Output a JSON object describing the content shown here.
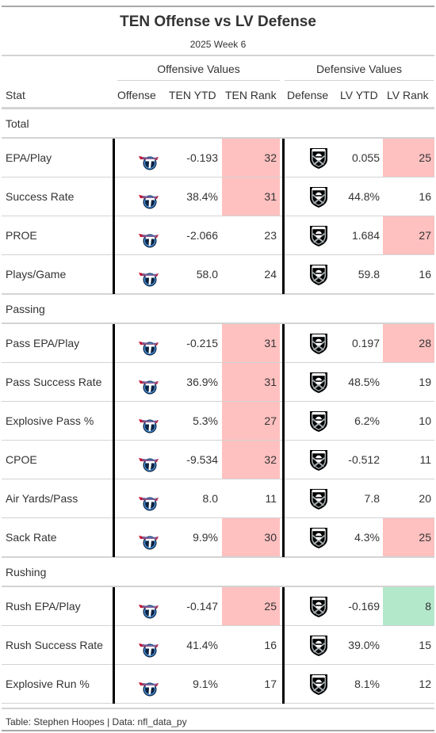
{
  "title": "TEN Offense vs LV Defense",
  "subtitle": "2025 Week 6",
  "spanners": {
    "offense": "Offensive Values",
    "defense": "Defensive Values"
  },
  "columns": {
    "stat": "Stat",
    "offense": "Offense",
    "ten_ytd": "TEN YTD",
    "ten_rank": "TEN Rank",
    "defense": "Defense",
    "lv_ytd": "LV YTD",
    "lv_rank": "LV Rank"
  },
  "logos": {
    "offense_icon": "tennessee-titans-logo-icon",
    "defense_icon": "las-vegas-raiders-logo-icon",
    "ten_colors": [
      "#0c2340",
      "#4b92db",
      "#c8102e"
    ],
    "lv_colors": [
      "#000000",
      "#a5acaf",
      "#ffffff"
    ]
  },
  "shading": {
    "bad_rank": "#ffc0c0",
    "good_rank": "#b3e8cb"
  },
  "groups": [
    {
      "label": "Total",
      "rows": [
        {
          "stat": "EPA/Play",
          "ten_ytd": "-0.193",
          "ten_rank": "32",
          "ten_shade": "red",
          "lv_ytd": "0.055",
          "lv_rank": "25",
          "lv_shade": "red"
        },
        {
          "stat": "Success Rate",
          "ten_ytd": "38.4%",
          "ten_rank": "31",
          "ten_shade": "red",
          "lv_ytd": "44.8%",
          "lv_rank": "16",
          "lv_shade": ""
        },
        {
          "stat": "PROE",
          "ten_ytd": "-2.066",
          "ten_rank": "23",
          "ten_shade": "",
          "lv_ytd": "1.684",
          "lv_rank": "27",
          "lv_shade": "red"
        },
        {
          "stat": "Plays/Game",
          "ten_ytd": "58.0",
          "ten_rank": "24",
          "ten_shade": "",
          "lv_ytd": "59.8",
          "lv_rank": "16",
          "lv_shade": ""
        }
      ]
    },
    {
      "label": "Passing",
      "rows": [
        {
          "stat": "Pass EPA/Play",
          "ten_ytd": "-0.215",
          "ten_rank": "31",
          "ten_shade": "red",
          "lv_ytd": "0.197",
          "lv_rank": "28",
          "lv_shade": "red"
        },
        {
          "stat": "Pass Success Rate",
          "ten_ytd": "36.9%",
          "ten_rank": "31",
          "ten_shade": "red",
          "lv_ytd": "48.5%",
          "lv_rank": "19",
          "lv_shade": ""
        },
        {
          "stat": "Explosive Pass %",
          "ten_ytd": "5.3%",
          "ten_rank": "27",
          "ten_shade": "red",
          "lv_ytd": "6.2%",
          "lv_rank": "10",
          "lv_shade": ""
        },
        {
          "stat": "CPOE",
          "ten_ytd": "-9.534",
          "ten_rank": "32",
          "ten_shade": "red",
          "lv_ytd": "-0.512",
          "lv_rank": "11",
          "lv_shade": ""
        },
        {
          "stat": "Air Yards/Pass",
          "ten_ytd": "8.0",
          "ten_rank": "11",
          "ten_shade": "",
          "lv_ytd": "7.8",
          "lv_rank": "20",
          "lv_shade": ""
        },
        {
          "stat": "Sack Rate",
          "ten_ytd": "9.9%",
          "ten_rank": "30",
          "ten_shade": "red",
          "lv_ytd": "4.3%",
          "lv_rank": "25",
          "lv_shade": "red"
        }
      ]
    },
    {
      "label": "Rushing",
      "rows": [
        {
          "stat": "Rush EPA/Play",
          "ten_ytd": "-0.147",
          "ten_rank": "25",
          "ten_shade": "red",
          "lv_ytd": "-0.169",
          "lv_rank": "8",
          "lv_shade": "green"
        },
        {
          "stat": "Rush Success Rate",
          "ten_ytd": "41.4%",
          "ten_rank": "16",
          "ten_shade": "",
          "lv_ytd": "39.0%",
          "lv_rank": "15",
          "lv_shade": ""
        },
        {
          "stat": "Explosive Run %",
          "ten_ytd": "9.1%",
          "ten_rank": "17",
          "ten_shade": "",
          "lv_ytd": "8.1%",
          "lv_rank": "12",
          "lv_shade": ""
        }
      ]
    }
  ],
  "footer": "Table: Stephen Hoopes | Data: nfl_data_py"
}
